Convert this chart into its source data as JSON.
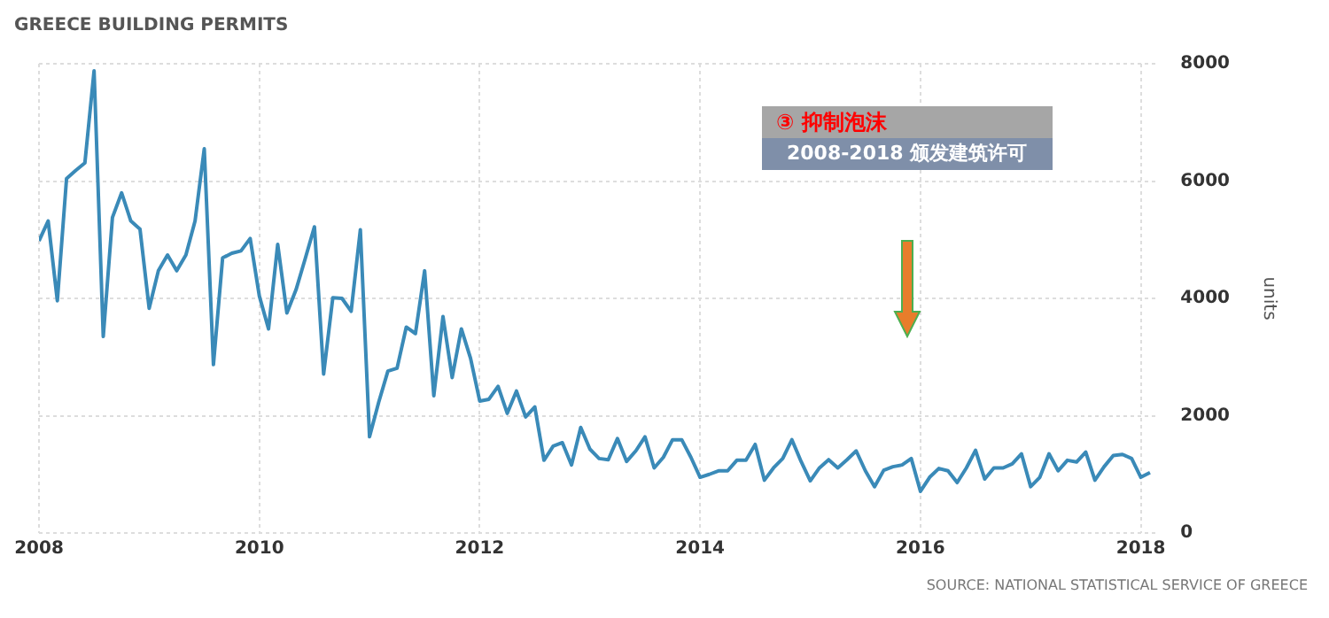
{
  "chart_data": {
    "type": "line",
    "title": "GREECE BUILDING PERMITS",
    "ylabel": "units",
    "annotations": [
      "③ 抑制泡沫",
      "2008-2018 颁发建筑许可",
      "SOURCE: NATIONAL STATISTICAL SERVICE OF GREECE"
    ],
    "x": [
      "2008-01",
      "2008-02",
      "2008-03",
      "2008-04",
      "2008-05",
      "2008-06",
      "2008-07",
      "2008-08",
      "2008-09",
      "2008-10",
      "2008-11",
      "2008-12",
      "2009-01",
      "2009-02",
      "2009-03",
      "2009-04",
      "2009-05",
      "2009-06",
      "2009-07",
      "2009-08",
      "2009-09",
      "2009-10",
      "2009-11",
      "2009-12",
      "2010-01",
      "2010-02",
      "2010-03",
      "2010-04",
      "2010-05",
      "2010-06",
      "2010-07",
      "2010-08",
      "2010-09",
      "2010-10",
      "2010-11",
      "2010-12",
      "2011-01",
      "2011-02",
      "2011-03",
      "2011-04",
      "2011-05",
      "2011-06",
      "2011-07",
      "2011-08",
      "2011-09",
      "2011-10",
      "2011-11",
      "2011-12",
      "2012-01",
      "2012-02",
      "2012-03",
      "2012-04",
      "2012-05",
      "2012-06",
      "2012-07",
      "2012-08",
      "2012-09",
      "2012-10",
      "2012-11",
      "2012-12",
      "2013-01",
      "2013-02",
      "2013-03",
      "2013-04",
      "2013-05",
      "2013-06",
      "2013-07",
      "2013-08",
      "2013-09",
      "2013-10",
      "2013-11",
      "2013-12",
      "2014-01",
      "2014-02",
      "2014-03",
      "2014-04",
      "2014-05",
      "2014-06",
      "2014-07",
      "2014-08",
      "2014-09",
      "2014-10",
      "2014-11",
      "2014-12",
      "2015-01",
      "2015-02",
      "2015-03",
      "2015-04",
      "2015-05",
      "2015-06",
      "2015-07",
      "2015-08",
      "2015-09",
      "2015-10",
      "2015-11",
      "2015-12",
      "2016-01",
      "2016-02",
      "2016-03",
      "2016-04",
      "2016-05",
      "2016-06",
      "2016-07",
      "2016-08",
      "2016-09",
      "2016-10",
      "2016-11",
      "2016-12",
      "2017-01",
      "2017-02",
      "2017-03",
      "2017-04",
      "2017-05",
      "2017-06",
      "2017-07",
      "2017-08",
      "2017-09",
      "2017-10",
      "2017-11",
      "2017-12",
      "2018-01",
      "2018-02"
    ],
    "series": [
      {
        "color": "#3a8ab8",
        "values": [
          4980,
          5320,
          3960,
          6040,
          6180,
          6310,
          7880,
          3350,
          5380,
          5800,
          5320,
          5180,
          3830,
          4470,
          4740,
          4470,
          4740,
          5320,
          6550,
          2870,
          4690,
          4770,
          4810,
          5020,
          4040,
          3480,
          4920,
          3750,
          4150,
          4680,
          5220,
          2710,
          4010,
          4000,
          3780,
          5170,
          1640,
          2230,
          2760,
          2810,
          3510,
          3400,
          4470,
          2340,
          3690,
          2650,
          3480,
          2980,
          2250,
          2280,
          2500,
          2040,
          2420,
          1980,
          2150,
          1240,
          1480,
          1540,
          1160,
          1800,
          1430,
          1270,
          1250,
          1610,
          1220,
          1400,
          1640,
          1110,
          1290,
          1590,
          1590,
          1290,
          950,
          1000,
          1060,
          1060,
          1240,
          1240,
          1510,
          900,
          1110,
          1270,
          1590,
          1220,
          890,
          1110,
          1250,
          1110,
          1250,
          1400,
          1060,
          790,
          1070,
          1130,
          1160,
          1270,
          710,
          950,
          1100,
          1060,
          860,
          1110,
          1410,
          920,
          1110,
          1110,
          1180,
          1350,
          790,
          950,
          1350,
          1060,
          1240,
          1210,
          1380,
          900,
          1130,
          1320,
          1340,
          1270,
          950,
          1030
        ]
      }
    ],
    "xlim": [
      "2008-01",
      "2018-03"
    ],
    "xticks": [
      "2008",
      "2010",
      "2012",
      "2014",
      "2016",
      "2018"
    ],
    "ylim": [
      0,
      8000
    ],
    "yticks": [
      0,
      2000,
      4000,
      6000,
      8000
    ],
    "grid": true,
    "legend": false,
    "marker": "none",
    "line_style": "solid"
  }
}
